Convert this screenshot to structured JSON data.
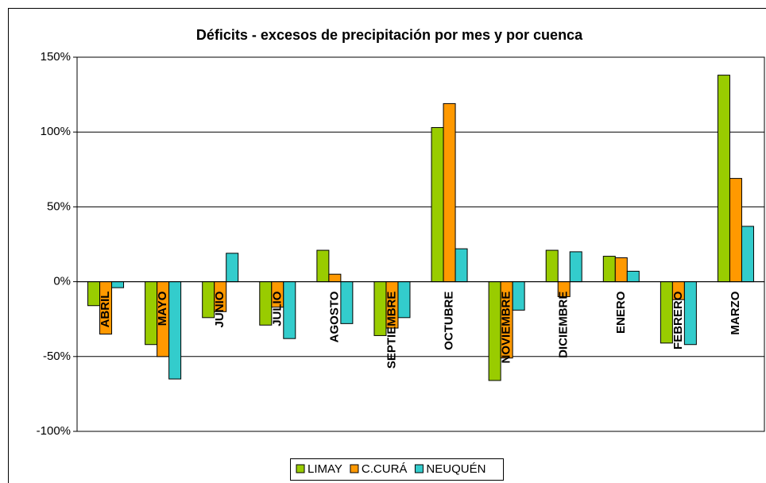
{
  "chart_data": {
    "type": "bar",
    "title": "Déficits - excesos de precipitación por mes y por cuenca",
    "categories": [
      "ABRIL",
      "MAYO",
      "JUNIO",
      "JULIO",
      "AGOSTO",
      "SEPTIEMBRE",
      "OCTUBRE",
      "NOVIEMBRE",
      "DICIEMBRE",
      "ENERO",
      "FEBRERO",
      "MARZO"
    ],
    "series": [
      {
        "name": "LIMAY",
        "color": "#99cc00",
        "values": [
          -16,
          -42,
          -24,
          -29,
          21,
          -36,
          103,
          -66,
          21,
          17,
          -41,
          138
        ]
      },
      {
        "name": "C.CURÁ",
        "color": "#ff9900",
        "values": [
          -35,
          -50,
          -20,
          -17,
          5,
          -31,
          119,
          -51,
          -10,
          16,
          -12,
          69
        ]
      },
      {
        "name": "NEUQUÉN",
        "color": "#33cccc",
        "values": [
          -4,
          -65,
          19,
          -38,
          -28,
          -24,
          22,
          -19,
          20,
          7,
          -42,
          37
        ]
      }
    ],
    "ylim": [
      -100,
      150
    ],
    "yticks": [
      {
        "value": -100,
        "label": "-100%"
      },
      {
        "value": -50,
        "label": "-50%"
      },
      {
        "value": 0,
        "label": "0%"
      },
      {
        "value": 50,
        "label": "50%"
      },
      {
        "value": 100,
        "label": "100%"
      },
      {
        "value": 150,
        "label": "150%"
      }
    ],
    "grid": true,
    "legend": "bottom"
  }
}
